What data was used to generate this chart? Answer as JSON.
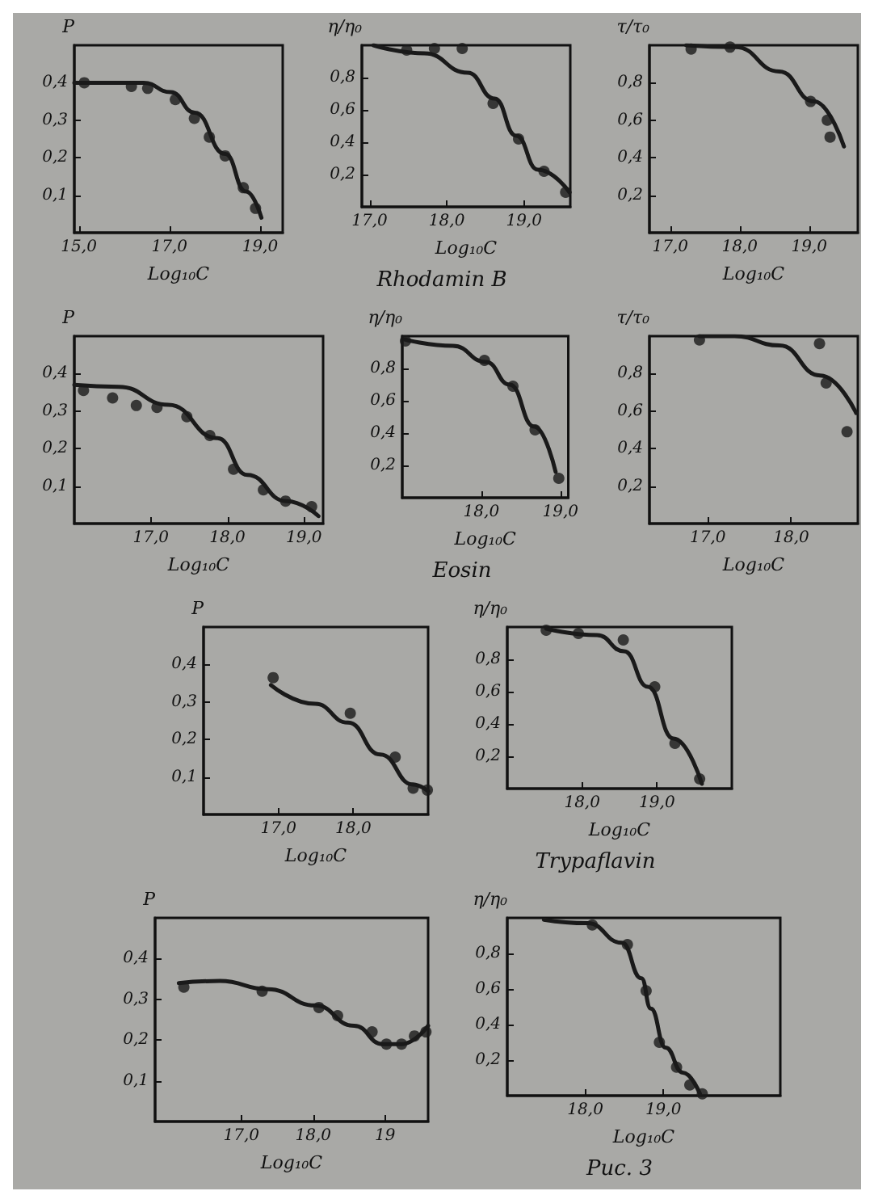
{
  "chart_data": [
    {
      "type": "scatter",
      "xlabel": "Log₁₀C",
      "ylabel": "P",
      "xlim": [
        14.9,
        19.5
      ],
      "ylim": [
        0,
        0.5
      ],
      "xticks": [
        {
          "value": 15,
          "label": "15,0"
        },
        {
          "value": 17,
          "label": "17,0"
        },
        {
          "value": 19,
          "label": "19,0"
        }
      ],
      "yticks": [
        {
          "value": 0.1,
          "label": "0,1"
        },
        {
          "value": 0.2,
          "label": "0,2"
        },
        {
          "value": 0.3,
          "label": "0,3"
        },
        {
          "value": 0.4,
          "label": "0,4"
        }
      ],
      "grid": false,
      "series": [
        {
          "type": "scatter",
          "marker": "circle",
          "color": "#1a1a1a",
          "x": [
            15.12,
            16.16,
            16.52,
            17.13,
            17.55,
            17.88,
            18.23,
            18.63,
            18.9
          ],
          "values": [
            0.4,
            0.39,
            0.385,
            0.355,
            0.305,
            0.255,
            0.205,
            0.12,
            0.065
          ]
        },
        {
          "type": "line",
          "marker": "none",
          "line_style": "solid",
          "color": "#1a1a1a",
          "x": [
            14.9,
            16.43,
            17.03,
            17.56,
            18.23,
            18.69,
            19.03
          ],
          "values": [
            0.4,
            0.4,
            0.375,
            0.32,
            0.21,
            0.11,
            0.04
          ]
        }
      ]
    },
    {
      "type": "scatter",
      "xlabel": "Log₁₀C",
      "ylabel": "η/η₀",
      "xlim": [
        16.9,
        19.6
      ],
      "ylim": [
        0,
        1
      ],
      "xticks": [
        {
          "value": 17,
          "label": "17,0"
        },
        {
          "value": 18,
          "label": "18,0"
        },
        {
          "value": 19,
          "label": "19,0"
        }
      ],
      "yticks": [
        {
          "value": 0.2,
          "label": "0,2"
        },
        {
          "value": 0.4,
          "label": "0,4"
        },
        {
          "value": 0.6,
          "label": "0,6"
        },
        {
          "value": 0.8,
          "label": "0,8"
        }
      ],
      "grid": false,
      "annotations": [
        "Rhodamin B"
      ],
      "series": [
        {
          "type": "scatter",
          "marker": "circle",
          "color": "#1a1a1a",
          "x": [
            17.48,
            17.84,
            18.2,
            18.6,
            18.93,
            19.26,
            19.54
          ],
          "values": [
            0.97,
            0.98,
            0.98,
            0.64,
            0.42,
            0.22,
            0.09
          ]
        },
        {
          "type": "line",
          "marker": "none",
          "line_style": "solid",
          "color": "#1a1a1a",
          "x": [
            17.05,
            17.71,
            18.27,
            18.62,
            18.9,
            19.18,
            19.59
          ],
          "values": [
            1.0,
            0.95,
            0.83,
            0.67,
            0.44,
            0.23,
            0.09
          ]
        }
      ]
    },
    {
      "type": "scatter",
      "xlabel": "Log₁₀C",
      "ylabel": "τ/τ₀",
      "xlim": [
        16.7,
        19.7
      ],
      "ylim": [
        0,
        1
      ],
      "xticks": [
        {
          "value": 17,
          "label": "17,0"
        },
        {
          "value": 18,
          "label": "18,0"
        },
        {
          "value": 19,
          "label": "19,0"
        }
      ],
      "yticks": [
        {
          "value": 0.2,
          "label": "0,2"
        },
        {
          "value": 0.4,
          "label": "0,4"
        },
        {
          "value": 0.6,
          "label": "0,6"
        },
        {
          "value": 0.8,
          "label": "0,8"
        }
      ],
      "grid": false,
      "series": [
        {
          "type": "scatter",
          "marker": "circle",
          "color": "#1a1a1a",
          "x": [
            17.3,
            17.86,
            19.02,
            19.26,
            19.3
          ],
          "values": [
            0.98,
            0.99,
            0.7,
            0.6,
            0.51
          ]
        },
        {
          "type": "line",
          "marker": "none",
          "line_style": "solid",
          "color": "#1a1a1a",
          "x": [
            17.23,
            17.94,
            18.57,
            19.07,
            19.5
          ],
          "values": [
            1.0,
            0.99,
            0.86,
            0.7,
            0.46
          ]
        }
      ]
    },
    {
      "type": "scatter",
      "xlabel": "Log₁₀C",
      "ylabel": "P",
      "xlim": [
        16.0,
        19.25
      ],
      "ylim": [
        0,
        0.5
      ],
      "xticks": [
        {
          "value": 17,
          "label": "17,0"
        },
        {
          "value": 18,
          "label": "18,0"
        },
        {
          "value": 19,
          "label": "19,0"
        }
      ],
      "yticks": [
        {
          "value": 0.1,
          "label": "0,1"
        },
        {
          "value": 0.2,
          "label": "0,2"
        },
        {
          "value": 0.3,
          "label": "0,3"
        },
        {
          "value": 0.4,
          "label": "0,4"
        }
      ],
      "grid": false,
      "series": [
        {
          "type": "scatter",
          "marker": "circle",
          "color": "#1a1a1a",
          "x": [
            16.12,
            16.5,
            16.81,
            17.08,
            17.47,
            17.77,
            18.08,
            18.47,
            18.76,
            19.1
          ],
          "values": [
            0.355,
            0.335,
            0.315,
            0.31,
            0.285,
            0.235,
            0.145,
            0.09,
            0.06,
            0.045
          ]
        },
        {
          "type": "line",
          "marker": "none",
          "line_style": "solid",
          "color": "#1a1a1a",
          "x": [
            16.0,
            16.58,
            17.23,
            17.87,
            18.26,
            18.77,
            19.19
          ],
          "values": [
            0.37,
            0.365,
            0.317,
            0.228,
            0.13,
            0.06,
            0.02
          ]
        }
      ]
    },
    {
      "type": "scatter",
      "xlabel": "Log₁₀C",
      "ylabel": "η/η₀",
      "xlim": [
        17.0,
        19.1
      ],
      "ylim": [
        0,
        1
      ],
      "xticks": [
        {
          "value": 18,
          "label": "18,0"
        },
        {
          "value": 19,
          "label": "19,0"
        }
      ],
      "yticks": [
        {
          "value": 0.2,
          "label": "0,2"
        },
        {
          "value": 0.4,
          "label": "0,4"
        },
        {
          "value": 0.6,
          "label": "0,6"
        },
        {
          "value": 0.8,
          "label": "0,8"
        }
      ],
      "grid": false,
      "annotations": [
        "Eosin"
      ],
      "series": [
        {
          "type": "scatter",
          "marker": "circle",
          "color": "#1a1a1a",
          "x": [
            17.04,
            18.04,
            18.4,
            18.68,
            18.98
          ],
          "values": [
            0.97,
            0.85,
            0.69,
            0.42,
            0.12
          ]
        },
        {
          "type": "line",
          "marker": "none",
          "line_style": "solid",
          "color": "#1a1a1a",
          "x": [
            17.03,
            17.64,
            18.06,
            18.36,
            18.67,
            18.94
          ],
          "values": [
            0.98,
            0.94,
            0.84,
            0.7,
            0.44,
            0.16
          ]
        }
      ]
    },
    {
      "type": "scatter",
      "xlabel": "Log₁₀C",
      "ylabel": "τ/τ₀",
      "xlim": [
        16.3,
        18.8
      ],
      "ylim": [
        0,
        1
      ],
      "xticks": [
        {
          "value": 17,
          "label": "17,0"
        },
        {
          "value": 18,
          "label": "18,0"
        }
      ],
      "yticks": [
        {
          "value": 0.2,
          "label": "0,2"
        },
        {
          "value": 0.4,
          "label": "0,4"
        },
        {
          "value": 0.6,
          "label": "0,6"
        },
        {
          "value": 0.8,
          "label": "0,8"
        }
      ],
      "grid": false,
      "series": [
        {
          "type": "scatter",
          "marker": "circle",
          "color": "#1a1a1a",
          "x": [
            16.9,
            18.34,
            18.42,
            18.67
          ],
          "values": [
            0.98,
            0.96,
            0.75,
            0.49
          ]
        },
        {
          "type": "line",
          "marker": "none",
          "line_style": "solid",
          "color": "#1a1a1a",
          "x": [
            16.9,
            17.32,
            17.86,
            18.35,
            18.78
          ],
          "values": [
            1.0,
            1.0,
            0.95,
            0.79,
            0.59
          ]
        }
      ]
    },
    {
      "type": "scatter",
      "xlabel": "Log₁₀C",
      "ylabel": "P",
      "xlim": [
        16.0,
        19.0
      ],
      "ylim": [
        0,
        0.5
      ],
      "xticks": [
        {
          "value": 17,
          "label": "17,0"
        },
        {
          "value": 18,
          "label": "18,0"
        }
      ],
      "yticks": [
        {
          "value": 0.1,
          "label": "0,1"
        },
        {
          "value": 0.2,
          "label": "0,2"
        },
        {
          "value": 0.3,
          "label": "0,3"
        },
        {
          "value": 0.4,
          "label": "0,4"
        }
      ],
      "grid": false,
      "series": [
        {
          "type": "scatter",
          "marker": "circle",
          "color": "#1a1a1a",
          "x": [
            16.93,
            17.96,
            18.56,
            18.8,
            18.99
          ],
          "values": [
            0.365,
            0.27,
            0.153,
            0.07,
            0.065
          ]
        },
        {
          "type": "line",
          "marker": "none",
          "line_style": "solid",
          "color": "#1a1a1a",
          "x": [
            16.9,
            17.49,
            17.93,
            18.36,
            18.8,
            19.0
          ],
          "values": [
            0.345,
            0.295,
            0.245,
            0.16,
            0.08,
            0.062
          ]
        }
      ]
    },
    {
      "type": "scatter",
      "xlabel": "Log₁₀C",
      "ylabel": "η/η₀",
      "xlim": [
        17.0,
        20.0
      ],
      "ylim": [
        0,
        1
      ],
      "xticks": [
        {
          "value": 18,
          "label": "18,0"
        },
        {
          "value": 19,
          "label": "19,0"
        }
      ],
      "yticks": [
        {
          "value": 0.2,
          "label": "0,2"
        },
        {
          "value": 0.4,
          "label": "0,4"
        },
        {
          "value": 0.6,
          "label": "0,6"
        },
        {
          "value": 0.8,
          "label": "0,8"
        }
      ],
      "grid": false,
      "annotations": [
        "Trypaflavin"
      ],
      "series": [
        {
          "type": "scatter",
          "marker": "circle",
          "color": "#1a1a1a",
          "x": [
            17.52,
            17.95,
            18.55,
            18.97,
            19.24,
            19.57
          ],
          "values": [
            0.98,
            0.96,
            0.92,
            0.63,
            0.28,
            0.06
          ]
        },
        {
          "type": "line",
          "marker": "none",
          "line_style": "solid",
          "color": "#1a1a1a",
          "x": [
            17.52,
            18.2,
            18.56,
            18.88,
            19.22,
            19.6
          ],
          "values": [
            0.99,
            0.95,
            0.85,
            0.63,
            0.31,
            0.03
          ]
        }
      ]
    },
    {
      "type": "scatter",
      "xlabel": "Log₁₀C",
      "ylabel": "P",
      "xlim": [
        15.8,
        19.6
      ],
      "ylim": [
        0,
        0.5
      ],
      "xticks": [
        {
          "value": 17,
          "label": "17,0"
        },
        {
          "value": 18,
          "label": "18,0"
        },
        {
          "value": 19,
          "label": "19"
        }
      ],
      "yticks": [
        {
          "value": 0.1,
          "label": "0,1"
        },
        {
          "value": 0.2,
          "label": "0,2"
        },
        {
          "value": 0.3,
          "label": "0,3"
        },
        {
          "value": 0.4,
          "label": "0,4"
        }
      ],
      "grid": false,
      "series": [
        {
          "type": "scatter",
          "marker": "circle",
          "color": "#1a1a1a",
          "x": [
            16.2,
            17.29,
            18.08,
            18.34,
            18.82,
            19.02,
            19.23,
            19.41,
            19.57
          ],
          "values": [
            0.33,
            0.32,
            0.28,
            0.26,
            0.22,
            0.19,
            0.19,
            0.21,
            0.22
          ]
        },
        {
          "type": "line",
          "marker": "none",
          "line_style": "solid",
          "color": "#1a1a1a",
          "x": [
            16.13,
            16.7,
            17.37,
            18.03,
            18.57,
            18.97,
            19.23,
            19.6
          ],
          "values": [
            0.34,
            0.345,
            0.325,
            0.285,
            0.235,
            0.19,
            0.19,
            0.235
          ]
        }
      ]
    },
    {
      "type": "scatter",
      "xlabel": "Log₁₀C",
      "ylabel": "η/η₀",
      "xlim": [
        17.0,
        20.5
      ],
      "ylim": [
        0,
        1
      ],
      "xticks": [
        {
          "value": 18,
          "label": "18,0"
        },
        {
          "value": 19,
          "label": "19,0"
        }
      ],
      "yticks": [
        {
          "value": 0.2,
          "label": "0,2"
        },
        {
          "value": 0.4,
          "label": "0,4"
        },
        {
          "value": 0.6,
          "label": "0,6"
        },
        {
          "value": 0.8,
          "label": "0,8"
        }
      ],
      "grid": false,
      "annotations": [
        "Рис. 3"
      ],
      "series": [
        {
          "type": "scatter",
          "marker": "circle",
          "color": "#1a1a1a",
          "x": [
            18.09,
            18.54,
            18.78,
            18.95,
            19.17,
            19.34,
            19.5
          ],
          "values": [
            0.96,
            0.85,
            0.59,
            0.3,
            0.16,
            0.06,
            0.01
          ]
        },
        {
          "type": "line",
          "marker": "none",
          "line_style": "solid",
          "color": "#1a1a1a",
          "x": [
            17.47,
            18.03,
            18.47,
            18.72,
            18.84,
            19.03,
            19.25,
            19.47
          ],
          "values": [
            0.99,
            0.97,
            0.86,
            0.66,
            0.49,
            0.27,
            0.13,
            0.01
          ]
        }
      ]
    }
  ]
}
